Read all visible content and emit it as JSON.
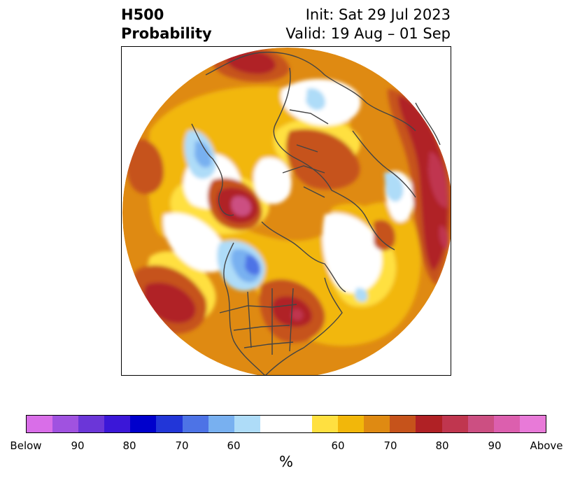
{
  "title": {
    "left_line1": "H500",
    "left_line2": "Probability",
    "right_line1": "Init: Sat 29 Jul 2023",
    "right_line2": "Valid: 19 Aug – 01 Sep"
  },
  "map": {
    "projection": "north-polar-stereographic",
    "field": "500 hPa height anomaly probability"
  },
  "colorbar": {
    "colors": [
      "#d96ee8",
      "#a052e0",
      "#6b36d8",
      "#3b17d8",
      "#0000cc",
      "#2236d8",
      "#4d73e6",
      "#78b0f0",
      "#aedcf8",
      "#ffffff",
      "#ffe040",
      "#f2b70a",
      "#df8a12",
      "#c6531b",
      "#b02125",
      "#c0364f",
      "#cc4f82",
      "#dc5fae",
      "#e87ad8"
    ],
    "tick_labels": [
      "Below",
      "90",
      "80",
      "70",
      "60",
      "60",
      "70",
      "80",
      "90",
      "Above"
    ],
    "unit": "%"
  }
}
